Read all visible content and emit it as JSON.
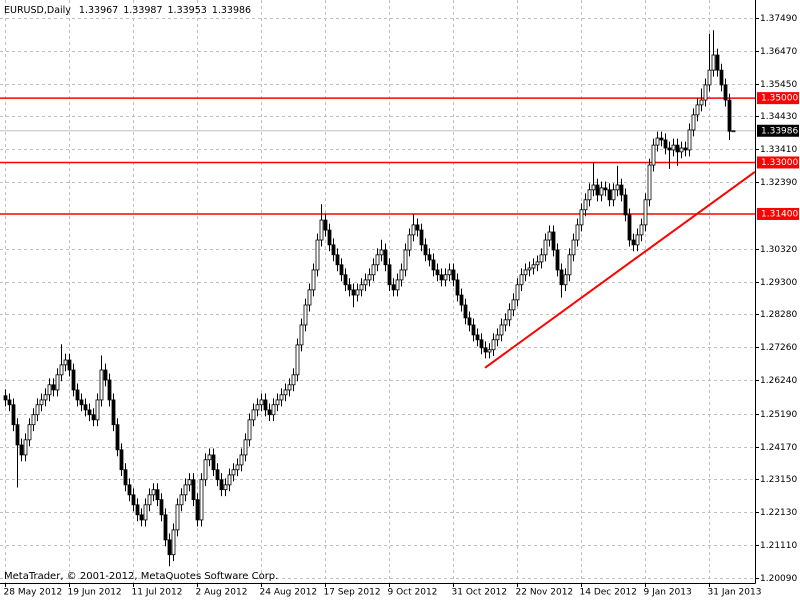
{
  "chart_data": {
    "type": "candlestick",
    "title": "EURUSD,Daily",
    "footer": "MetaTrader, © 2001-2012, MetaQuotes Software Corp.",
    "categories": [
      "28 May 2012",
      null,
      null,
      null,
      null,
      null,
      null,
      null,
      null,
      null,
      null,
      null,
      null,
      null,
      null,
      null,
      "19 Jun 2012",
      null,
      null,
      null,
      null,
      null,
      null,
      null,
      null,
      null,
      null,
      null,
      null,
      null,
      null,
      null,
      "11 Jul 2012",
      null,
      null,
      null,
      null,
      null,
      null,
      null,
      null,
      null,
      null,
      null,
      null,
      null,
      null,
      null,
      "2 Aug 2012",
      null,
      null,
      null,
      null,
      null,
      null,
      null,
      null,
      null,
      null,
      null,
      null,
      null,
      null,
      null,
      "24 Aug 2012",
      null,
      null,
      null,
      null,
      null,
      null,
      null,
      null,
      null,
      null,
      null,
      null,
      null,
      null,
      null,
      "17 Sep 2012",
      null,
      null,
      null,
      null,
      null,
      null,
      null,
      null,
      null,
      null,
      null,
      null,
      null,
      null,
      null,
      "9 Oct 2012",
      null,
      null,
      null,
      null,
      null,
      null,
      null,
      null,
      null,
      null,
      null,
      null,
      null,
      null,
      null,
      "31 Oct 2012",
      null,
      null,
      null,
      null,
      null,
      null,
      null,
      null,
      null,
      null,
      null,
      null,
      null,
      null,
      null,
      "22 Nov 2012",
      null,
      null,
      null,
      null,
      null,
      null,
      null,
      null,
      null,
      null,
      null,
      null,
      null,
      null,
      null,
      "14 Dec 2012",
      null,
      null,
      null,
      null,
      null,
      null,
      null,
      null,
      null,
      null,
      null,
      null,
      null,
      null,
      null,
      "9 Jan 2013",
      null,
      null,
      null,
      null,
      null,
      null,
      null,
      null,
      null,
      null,
      null,
      null,
      null,
      null,
      null,
      "31 Jan 2013",
      null,
      null,
      null,
      null,
      null,
      null
    ],
    "open": [
      1.2575,
      1.2562,
      1.2547,
      1.2485,
      1.2422,
      1.2391,
      1.2438,
      1.2485,
      1.2516,
      1.2547,
      1.2562,
      1.2578,
      1.2609,
      1.2593,
      1.264,
      1.2671,
      1.2686,
      1.2655,
      1.2593,
      1.2562,
      1.2547,
      1.2531,
      1.2516,
      1.25,
      1.2562,
      1.2655,
      1.2624,
      1.2562,
      1.2485,
      1.2407,
      1.2345,
      1.2298,
      1.2267,
      1.2236,
      1.2205,
      1.2189,
      1.2236,
      1.2267,
      1.2283,
      1.2252,
      1.2205,
      1.2127,
      1.2081,
      1.2158,
      1.2236,
      1.2267,
      1.2298,
      1.2314,
      1.2252,
      1.2189,
      1.2314,
      1.2376,
      1.2391,
      1.2345,
      1.2314,
      1.2283,
      1.2298,
      1.2329,
      1.2345,
      1.236,
      1.2391,
      1.2438,
      1.25,
      1.2531,
      1.2547,
      1.2562,
      1.2531,
      1.2516,
      1.2547,
      1.2562,
      1.2578,
      1.2593,
      1.2609,
      1.264,
      1.2733,
      1.2795,
      1.2857,
      1.2904,
      1.2966,
      1.3059,
      1.3121,
      1.309,
      1.3044,
      1.3013,
      1.2982,
      1.2951,
      1.292,
      1.2904,
      1.2888,
      1.2904,
      1.292,
      1.2935,
      1.2951,
      1.2982,
      1.3013,
      1.3028,
      1.2982,
      1.292,
      1.2904,
      1.2935,
      1.2966,
      1.3028,
      1.3075,
      1.3106,
      1.309,
      1.3044,
      1.3013,
      1.2997,
      1.2966,
      1.2951,
      1.2935,
      1.2951,
      1.2966,
      1.2935,
      1.2888,
      1.2857,
      1.2817,
      1.2795,
      1.2764,
      1.2749,
      1.2724,
      1.2711,
      1.2718,
      1.2749,
      1.2764,
      1.2795,
      1.2811,
      1.2842,
      1.2873,
      1.292,
      1.2951,
      1.2966,
      1.2972,
      1.2982,
      1.2991,
      1.3013,
      1.3059,
      1.3084,
      1.3028,
      1.2966,
      1.292,
      1.2951,
      1.3013,
      1.3059,
      1.3106,
      1.3153,
      1.3184,
      1.3215,
      1.323,
      1.3199,
      1.3221,
      1.3215,
      1.3184,
      1.3215,
      1.323,
      1.3199,
      1.3137,
      1.3059,
      1.3044,
      1.3075,
      1.3106,
      1.3184,
      1.3292,
      1.3354,
      1.3376,
      1.337,
      1.3345,
      1.3339,
      1.3354,
      1.3333,
      1.3345,
      1.3339,
      1.3401,
      1.3448,
      1.3479,
      1.3494,
      1.3541,
      1.3587,
      1.3634,
      1.3587,
      1.3541,
      1.3494,
      1.33967
    ],
    "high": [
      1.2595,
      1.2582,
      1.2567,
      1.2505,
      1.2442,
      1.2458,
      1.2505,
      1.2536,
      1.2567,
      1.2582,
      1.2598,
      1.2629,
      1.2629,
      1.266,
      1.2735,
      1.2706,
      1.2706,
      1.2675,
      1.2613,
      1.2582,
      1.2567,
      1.2551,
      1.2536,
      1.2582,
      1.27,
      1.2675,
      1.2644,
      1.2582,
      1.2505,
      1.2427,
      1.2365,
      1.2318,
      1.2287,
      1.2256,
      1.2225,
      1.2256,
      1.2287,
      1.2303,
      1.2303,
      1.2272,
      1.2225,
      1.2147,
      1.2178,
      1.2256,
      1.2287,
      1.2318,
      1.2334,
      1.2334,
      1.2272,
      1.2334,
      1.2396,
      1.2411,
      1.2411,
      1.2365,
      1.2334,
      1.2318,
      1.2349,
      1.2365,
      1.238,
      1.2411,
      1.2458,
      1.252,
      1.2551,
      1.2567,
      1.2582,
      1.2582,
      1.2551,
      1.2567,
      1.2582,
      1.2598,
      1.2613,
      1.2629,
      1.266,
      1.2753,
      1.2815,
      1.2877,
      1.2924,
      1.2986,
      1.3079,
      1.317,
      1.3141,
      1.311,
      1.3064,
      1.3033,
      1.3002,
      1.2971,
      1.294,
      1.2924,
      1.2924,
      1.294,
      1.2955,
      1.2971,
      1.3002,
      1.3033,
      1.306,
      1.3048,
      1.3002,
      1.294,
      1.2955,
      1.2986,
      1.3048,
      1.3095,
      1.314,
      1.3126,
      1.311,
      1.3064,
      1.3033,
      1.3017,
      1.2986,
      1.2971,
      1.2971,
      1.2986,
      1.2986,
      1.2955,
      1.2908,
      1.2877,
      1.2837,
      1.2815,
      1.2784,
      1.2769,
      1.2744,
      1.2738,
      1.2769,
      1.2784,
      1.2815,
      1.2831,
      1.2862,
      1.2893,
      1.294,
      1.2971,
      1.2986,
      1.2992,
      1.3002,
      1.3011,
      1.3033,
      1.3079,
      1.3104,
      1.3104,
      1.3048,
      1.2986,
      1.2971,
      1.3033,
      1.3079,
      1.3126,
      1.3173,
      1.3204,
      1.3235,
      1.33,
      1.325,
      1.3241,
      1.3241,
      1.3235,
      1.3235,
      1.329,
      1.325,
      1.3219,
      1.3157,
      1.3079,
      1.3095,
      1.3126,
      1.3204,
      1.3312,
      1.3374,
      1.3396,
      1.3396,
      1.339,
      1.3365,
      1.3374,
      1.3374,
      1.3365,
      1.3365,
      1.3421,
      1.3468,
      1.3499,
      1.353,
      1.3561,
      1.37,
      1.3711,
      1.3654,
      1.3607,
      1.3561,
      1.3514,
      1.33987
    ],
    "low": [
      1.2542,
      1.2527,
      1.2465,
      1.229,
      1.2371,
      1.2371,
      1.2418,
      1.2465,
      1.2496,
      1.2527,
      1.2542,
      1.2558,
      1.2573,
      1.2573,
      1.262,
      1.2651,
      1.2635,
      1.2573,
      1.2542,
      1.2527,
      1.2511,
      1.2496,
      1.248,
      1.248,
      1.2542,
      1.2604,
      1.2542,
      1.2465,
      1.2387,
      1.2325,
      1.2278,
      1.2247,
      1.2216,
      1.2185,
      1.2169,
      1.2169,
      1.2216,
      1.2247,
      1.2232,
      1.2185,
      1.2107,
      1.2045,
      1.2061,
      1.2138,
      1.2216,
      1.2247,
      1.2278,
      1.2232,
      1.2169,
      1.2169,
      1.2294,
      1.2356,
      1.2325,
      1.2294,
      1.2263,
      1.2263,
      1.2278,
      1.2309,
      1.2325,
      1.234,
      1.2371,
      1.2418,
      1.248,
      1.2511,
      1.2527,
      1.2511,
      1.2496,
      1.2496,
      1.2527,
      1.2542,
      1.2558,
      1.2573,
      1.2589,
      1.262,
      1.2713,
      1.2775,
      1.2837,
      1.2884,
      1.2946,
      1.3039,
      1.307,
      1.3024,
      1.2993,
      1.2962,
      1.2931,
      1.29,
      1.2884,
      1.285,
      1.2868,
      1.2884,
      1.29,
      1.2915,
      1.2931,
      1.2962,
      1.2993,
      1.2962,
      1.29,
      1.2884,
      1.2884,
      1.2915,
      1.2946,
      1.3008,
      1.3055,
      1.307,
      1.3024,
      1.2993,
      1.2977,
      1.2946,
      1.2931,
      1.2915,
      1.2915,
      1.2931,
      1.2915,
      1.2868,
      1.2837,
      1.2797,
      1.2775,
      1.2744,
      1.2729,
      1.2704,
      1.2691,
      1.2691,
      1.2698,
      1.2729,
      1.2744,
      1.2775,
      1.2791,
      1.2822,
      1.2853,
      1.29,
      1.2931,
      1.2946,
      1.2952,
      1.2962,
      1.2971,
      1.2993,
      1.3039,
      1.3008,
      1.2946,
      1.288,
      1.29,
      1.2931,
      1.2993,
      1.3039,
      1.3086,
      1.3133,
      1.3164,
      1.3195,
      1.3179,
      1.3179,
      1.3195,
      1.3164,
      1.3164,
      1.3195,
      1.3179,
      1.3117,
      1.3039,
      1.3024,
      1.3024,
      1.3055,
      1.3086,
      1.3164,
      1.3272,
      1.3334,
      1.335,
      1.3325,
      1.328,
      1.3319,
      1.329,
      1.3313,
      1.3319,
      1.3319,
      1.3381,
      1.3428,
      1.3459,
      1.3474,
      1.3521,
      1.3567,
      1.3567,
      1.3521,
      1.3474,
      1.337,
      1.33953
    ],
    "close": [
      1.2562,
      1.2547,
      1.2485,
      1.2422,
      1.2391,
      1.2438,
      1.2485,
      1.2516,
      1.2547,
      1.2562,
      1.2578,
      1.2609,
      1.2593,
      1.264,
      1.2671,
      1.2686,
      1.2655,
      1.2593,
      1.2562,
      1.2547,
      1.2531,
      1.2516,
      1.25,
      1.2562,
      1.2655,
      1.2624,
      1.2562,
      1.2485,
      1.2407,
      1.2345,
      1.2298,
      1.2267,
      1.2236,
      1.2205,
      1.2189,
      1.2236,
      1.2267,
      1.2283,
      1.2252,
      1.2205,
      1.2127,
      1.2081,
      1.2158,
      1.2236,
      1.2267,
      1.2298,
      1.2314,
      1.2252,
      1.2189,
      1.2314,
      1.2376,
      1.2391,
      1.2345,
      1.2314,
      1.2283,
      1.2298,
      1.2329,
      1.2345,
      1.236,
      1.2391,
      1.2438,
      1.25,
      1.2531,
      1.2547,
      1.2562,
      1.2531,
      1.2516,
      1.2547,
      1.2562,
      1.2578,
      1.2593,
      1.2609,
      1.264,
      1.2733,
      1.2795,
      1.2857,
      1.2904,
      1.2966,
      1.3059,
      1.3121,
      1.309,
      1.3044,
      1.3013,
      1.2982,
      1.2951,
      1.292,
      1.2904,
      1.2888,
      1.2904,
      1.292,
      1.2935,
      1.2951,
      1.2982,
      1.3013,
      1.3028,
      1.2982,
      1.292,
      1.2904,
      1.2935,
      1.2966,
      1.3028,
      1.3075,
      1.3106,
      1.309,
      1.3044,
      1.3013,
      1.2997,
      1.2966,
      1.2951,
      1.2935,
      1.2951,
      1.2966,
      1.2935,
      1.2888,
      1.2857,
      1.2817,
      1.2795,
      1.2764,
      1.2749,
      1.2724,
      1.2711,
      1.2718,
      1.2749,
      1.2764,
      1.2795,
      1.2811,
      1.2842,
      1.2873,
      1.292,
      1.2951,
      1.2966,
      1.2972,
      1.2982,
      1.2991,
      1.3013,
      1.3059,
      1.3084,
      1.3028,
      1.2966,
      1.292,
      1.2951,
      1.3013,
      1.3059,
      1.3106,
      1.3153,
      1.3184,
      1.3215,
      1.323,
      1.3199,
      1.3221,
      1.3215,
      1.3184,
      1.3215,
      1.323,
      1.3199,
      1.3137,
      1.3059,
      1.3044,
      1.3075,
      1.3106,
      1.3184,
      1.3292,
      1.3354,
      1.3376,
      1.337,
      1.3345,
      1.3339,
      1.3354,
      1.3333,
      1.3345,
      1.3339,
      1.3401,
      1.3448,
      1.3479,
      1.3494,
      1.3541,
      1.3587,
      1.3634,
      1.3587,
      1.3541,
      1.3494,
      1.3397,
      1.33986
    ],
    "ylim": [
      1.1993,
      1.3805
    ],
    "yticks": [
      {
        "value": 1.3749,
        "label": "1.37490"
      },
      {
        "value": 1.3647,
        "label": "1.36470"
      },
      {
        "value": 1.3545,
        "label": "1.35450"
      },
      {
        "value": 1.3443,
        "label": "1.34430"
      },
      {
        "value": 1.3341,
        "label": "1.33410"
      },
      {
        "value": 1.3239,
        "label": "1.32390"
      },
      {
        "value": 1.3032,
        "label": "1.30320"
      },
      {
        "value": 1.293,
        "label": "1.29300"
      },
      {
        "value": 1.2828,
        "label": "1.28280"
      },
      {
        "value": 1.2726,
        "label": "1.27260"
      },
      {
        "value": 1.2624,
        "label": "1.26240"
      },
      {
        "value": 1.2519,
        "label": "1.25190"
      },
      {
        "value": 1.2417,
        "label": "1.24170"
      },
      {
        "value": 1.2315,
        "label": "1.23150"
      },
      {
        "value": 1.2213,
        "label": "1.22130"
      },
      {
        "value": 1.2111,
        "label": "1.21110"
      },
      {
        "value": 1.2009,
        "label": "1.20090"
      }
    ],
    "grid": true,
    "hlines": [
      {
        "value": 1.35,
        "label": "1.35000"
      },
      {
        "value": 1.33,
        "label": "1.33000"
      },
      {
        "value": 1.314,
        "label": "1.31400"
      }
    ],
    "hline_color": "#ff0000",
    "trendline": {
      "x": [
        120,
        187.5
      ],
      "y": [
        1.2662,
        1.3271
      ]
    },
    "up_color": "#ffffff",
    "down_color": "#000000"
  }
}
